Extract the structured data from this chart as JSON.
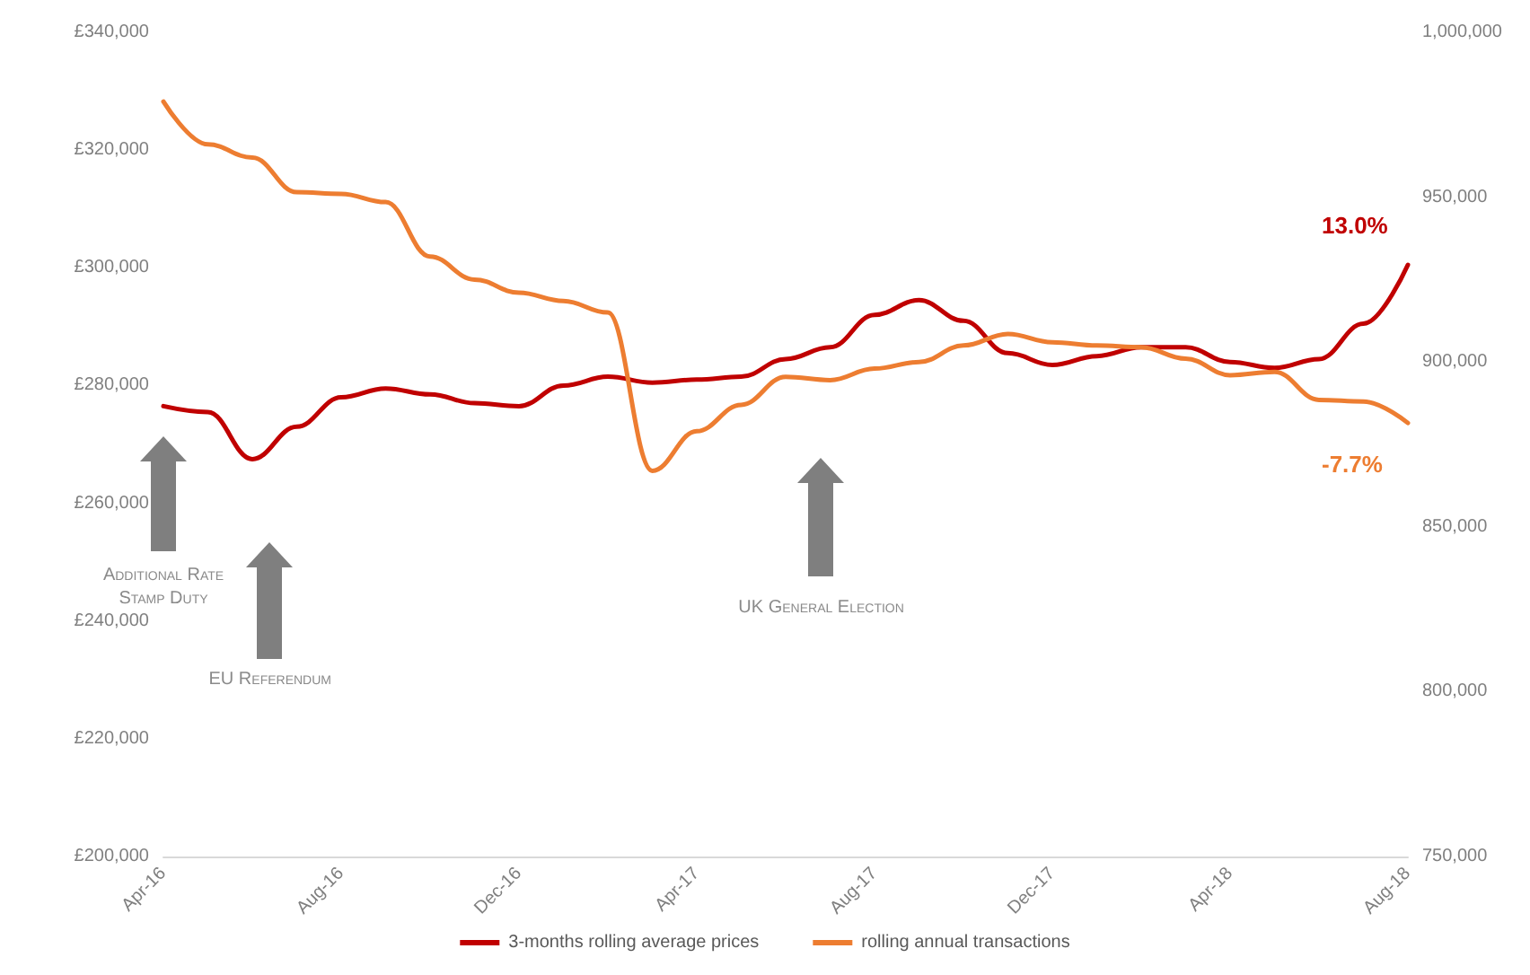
{
  "chart_data": {
    "type": "line",
    "categories": [
      "Apr-16",
      null,
      null,
      null,
      "Aug-16",
      null,
      null,
      null,
      "Dec-16",
      null,
      null,
      null,
      "Apr-17",
      null,
      null,
      null,
      "Aug-17",
      null,
      null,
      null,
      "Dec-17",
      null,
      null,
      null,
      "Apr-18",
      null,
      null,
      null,
      "Aug-18"
    ],
    "series": [
      {
        "name": "3-months rolling average prices",
        "color": "#c00000",
        "values": [
          276500,
          275500,
          267500,
          273000,
          278000,
          279500,
          278500,
          277000,
          276500,
          280000,
          281500,
          280500,
          281000,
          281500,
          284500,
          286500,
          292000,
          294500,
          291000,
          285500,
          283500,
          285000,
          286500,
          286500,
          284000,
          283000,
          284500,
          290500,
          300500
        ]
      },
      {
        "name": "rolling annual transactions",
        "color": "#ed7d31",
        "axis": "y2",
        "values": [
          979000,
          966000,
          962000,
          951500,
          951000,
          948500,
          932000,
          925000,
          921000,
          918500,
          915000,
          867000,
          879000,
          887000,
          895500,
          894500,
          898000,
          900000,
          905000,
          908500,
          906000,
          905000,
          904500,
          901000,
          896000,
          897000,
          888500,
          888000,
          881500
        ]
      }
    ],
    "ylim": [
      200000,
      340000
    ],
    "yticks": [
      {
        "value": 200000,
        "label": "£200,000"
      },
      {
        "value": 220000,
        "label": "£220,000"
      },
      {
        "value": 240000,
        "label": "£240,000"
      },
      {
        "value": 260000,
        "label": "£260,000"
      },
      {
        "value": 280000,
        "label": "£280,000"
      },
      {
        "value": 300000,
        "label": "£300,000"
      },
      {
        "value": 320000,
        "label": "£320,000"
      },
      {
        "value": 340000,
        "label": "£340,000"
      }
    ],
    "y2lim": [
      750000,
      1000000
    ],
    "y2ticks": [
      {
        "value": 750000,
        "label": "750,000"
      },
      {
        "value": 800000,
        "label": "800,000"
      },
      {
        "value": 850000,
        "label": "850,000"
      },
      {
        "value": 900000,
        "label": "900,000"
      },
      {
        "value": 950000,
        "label": "950,000"
      },
      {
        "value": 1000000,
        "label": "1,000,000"
      }
    ],
    "annotations": [
      "Additional Rate Stamp Duty",
      "EU Referendum",
      "UK General Election",
      "13.0%",
      "-7.7%"
    ],
    "grid": false,
    "legend": "bottom",
    "marker": "none",
    "line_style": "solid"
  }
}
